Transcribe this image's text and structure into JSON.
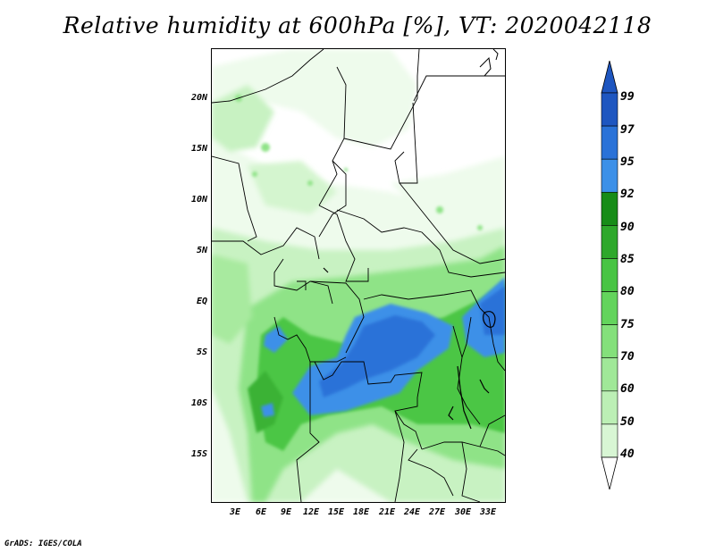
{
  "title": "Relative humidity at 600hPa [%], VT: 2020042118",
  "credit": "GrADS: IGES/COLA",
  "lat_labels": [
    "20N",
    "15N",
    "10N",
    "5N",
    "EQ",
    "5S",
    "10S",
    "15S"
  ],
  "lon_labels": [
    "3E",
    "6E",
    "9E",
    "12E",
    "15E",
    "18E",
    "21E",
    "24E",
    "27E",
    "30E",
    "33E"
  ],
  "colorbar": {
    "levels": [
      "40",
      "50",
      "60",
      "70",
      "75",
      "80",
      "85",
      "90",
      "92",
      "95",
      "97",
      "99"
    ],
    "colors": [
      "#f0fcef",
      "#d8f6d4",
      "#bcefb5",
      "#a0e898",
      "#84e07b",
      "#63d45c",
      "#48c443",
      "#2ea82b",
      "#178c18",
      "#3c90e8",
      "#2a72d8",
      "#1e56c0"
    ]
  }
}
